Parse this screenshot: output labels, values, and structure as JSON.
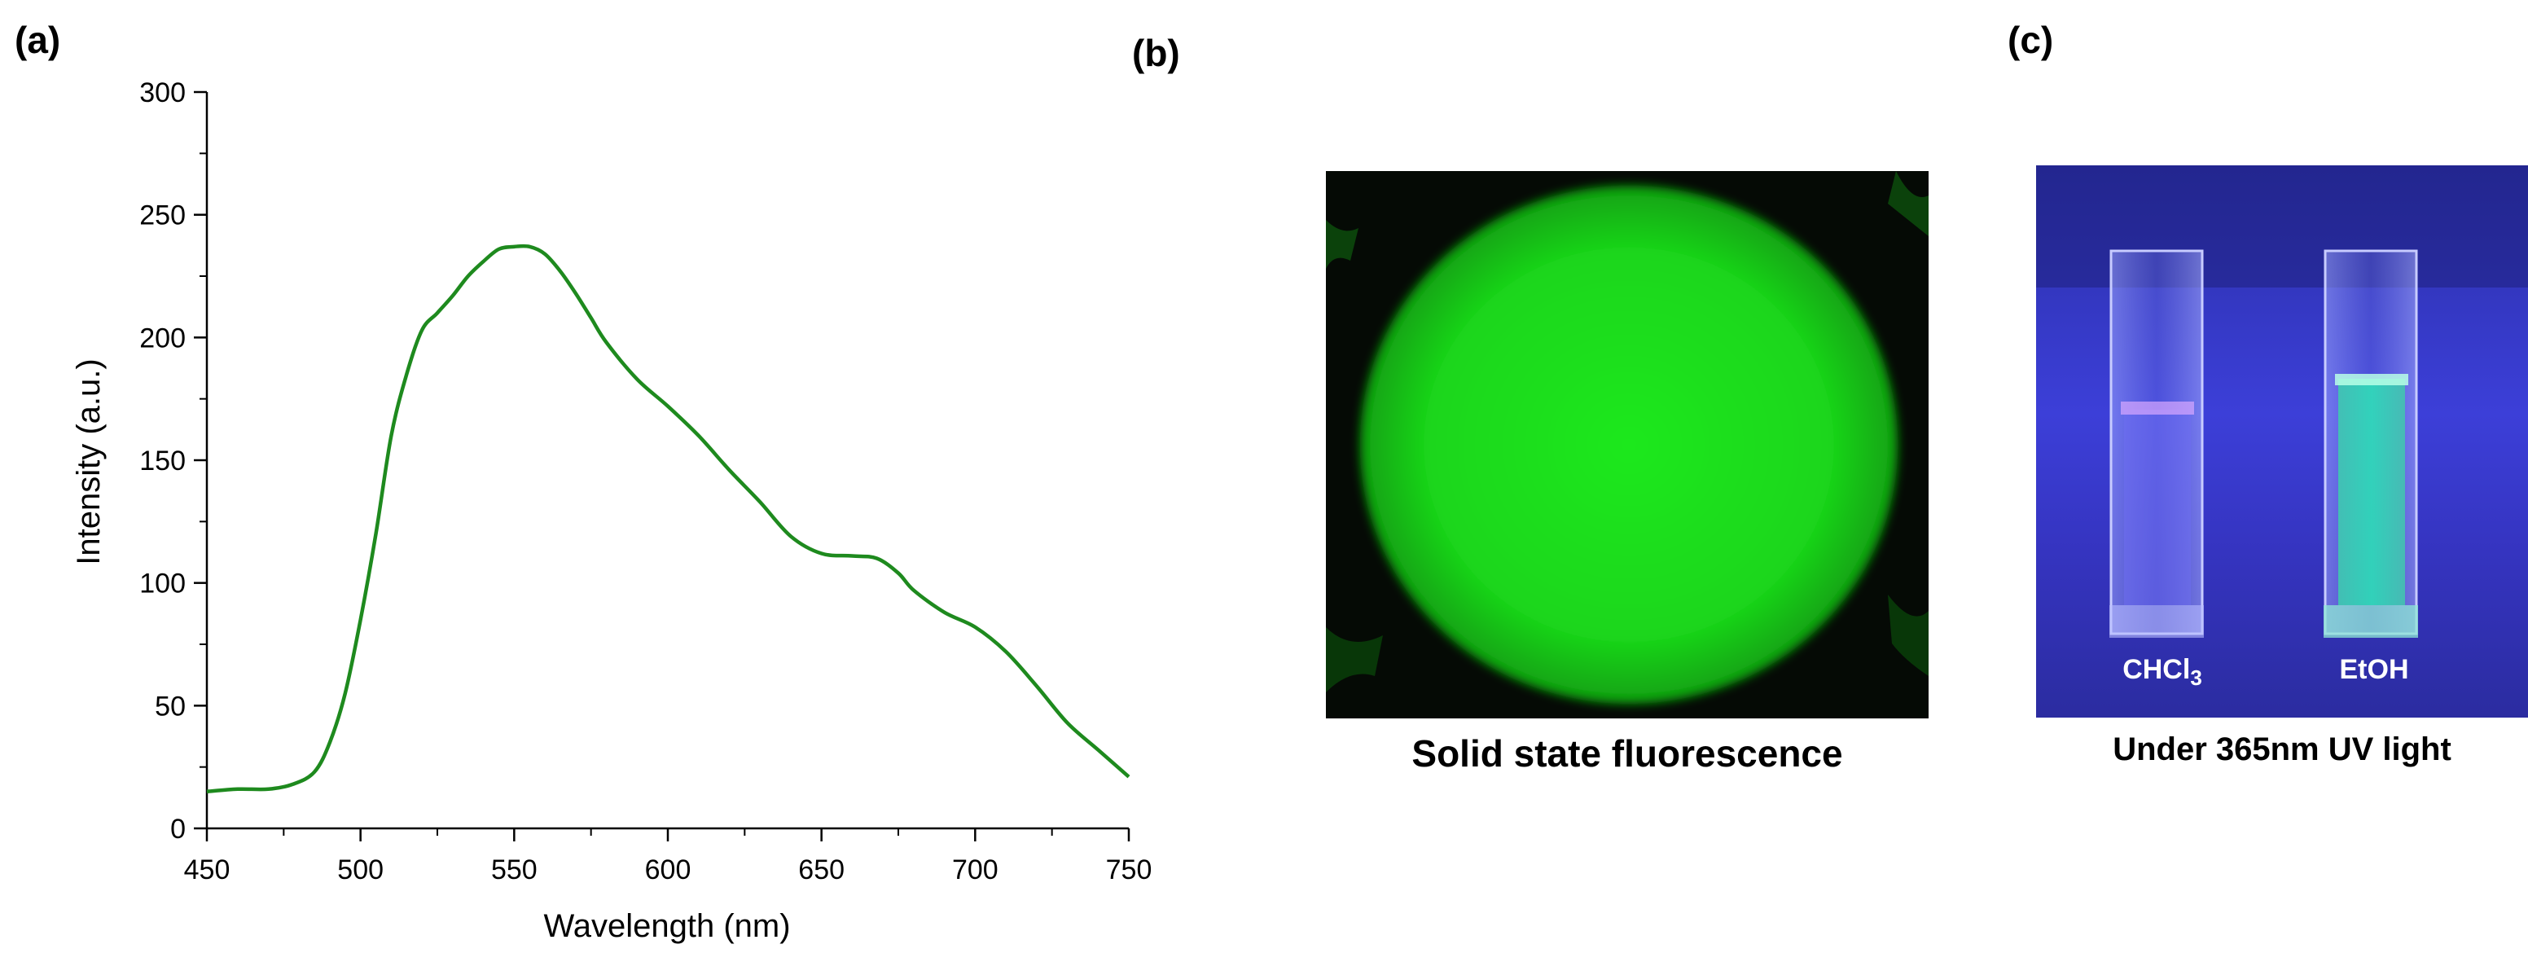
{
  "panels": {
    "a_label": "(a)",
    "b_label": "(b)",
    "c_label": "(c)"
  },
  "chart_data": {
    "type": "line",
    "xlabel": "Wavelength (nm)",
    "ylabel": "Intensity (a.u.)",
    "xlim": [
      450,
      750
    ],
    "ylim": [
      0,
      300
    ],
    "x_ticks": [
      450,
      500,
      550,
      600,
      650,
      700,
      750
    ],
    "y_ticks": [
      0,
      50,
      100,
      150,
      200,
      250,
      300
    ],
    "grid": false,
    "series": [
      {
        "color": "#1e8a1e",
        "x": [
          450,
          460,
          470,
          478,
          485,
          490,
          495,
          500,
          505,
          510,
          515,
          520,
          525,
          530,
          535,
          540,
          545,
          550,
          555,
          560,
          565,
          570,
          575,
          580,
          590,
          600,
          610,
          620,
          630,
          640,
          650,
          660,
          668,
          675,
          680,
          690,
          700,
          710,
          720,
          730,
          740,
          750
        ],
        "y": [
          15,
          16,
          16,
          18,
          23,
          35,
          55,
          85,
          120,
          160,
          185,
          203,
          210,
          217,
          225,
          231,
          236,
          237,
          237,
          234,
          227,
          218,
          208,
          198,
          183,
          172,
          160,
          146,
          133,
          119,
          112,
          111,
          110,
          104,
          97,
          88,
          82,
          72,
          58,
          43,
          32,
          21
        ]
      }
    ]
  },
  "photo_b": {
    "caption": "Solid state fluorescence"
  },
  "photo_c": {
    "caption": "Under 365nm UV light",
    "left_label": "CHCl",
    "left_label_sub": "3",
    "right_label": "EtOH"
  }
}
